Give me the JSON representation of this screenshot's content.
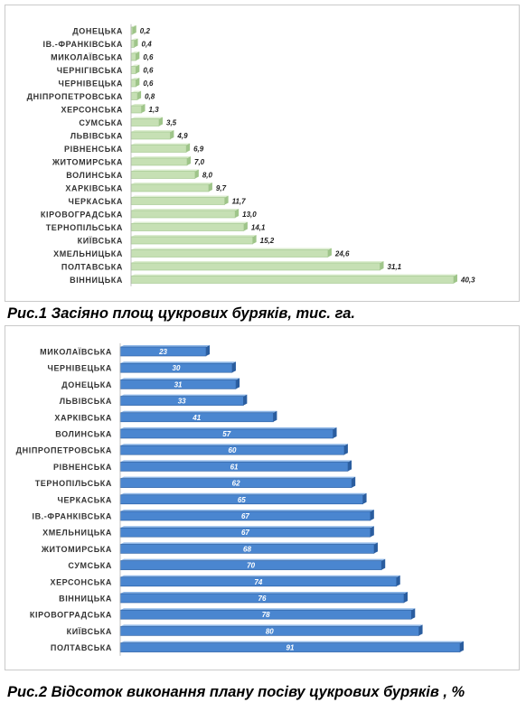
{
  "figures": [
    {
      "caption": "Рис.1  Засіяно площ цукрових буряків, тис. га.",
      "chart_data": {
        "type": "bar",
        "orientation": "horizontal",
        "categories": [
          "ДОНЕЦЬКА",
          "ІВ.-ФРАНКІВСЬКА",
          "МИКОЛАЇВСЬКА",
          "ЧЕРНІГІВСЬКА",
          "ЧЕРНІВЕЦЬКА",
          "ДНІПРОПЕТРОВСЬКА",
          "ХЕРСОНСЬКА",
          "СУМСЬКА",
          "ЛЬВІВСЬКА",
          "РІВНЕНСЬКА",
          "ЖИТОМИРСЬКА",
          "ВОЛИНСЬКА",
          "ХАРКІВСЬКА",
          "ЧЕРКАСЬКА",
          "КІРОВОГРАДСЬКА",
          "ТЕРНОПІЛЬСЬКА",
          "КИЇВСЬКА",
          "ХМЕЛЬНИЦЬКА",
          "ПОЛТАВСЬКА",
          "ВІННИЦЬКА"
        ],
        "values": [
          0.2,
          0.4,
          0.6,
          0.6,
          0.6,
          0.8,
          1.3,
          3.5,
          4.9,
          6.9,
          7.0,
          8.0,
          9.7,
          11.7,
          13.0,
          14.1,
          15.2,
          24.6,
          31.1,
          40.3
        ],
        "value_labels": [
          "0,2",
          "0,4",
          "0,6",
          "0,6",
          "0,6",
          "0,8",
          "1,3",
          "3,5",
          "4,9",
          "6,9",
          "7,0",
          "8,0",
          "9,7",
          "11,7",
          "13,0",
          "14,1",
          "15,2",
          "24,6",
          "31,1",
          "40,3"
        ],
        "xlim": [
          0,
          40.3
        ],
        "grid": false,
        "colors": {
          "bar": "#c6e0b4",
          "bar_top": "#dcedd0",
          "bar_side": "#9fc58a",
          "label": "#1f1f1f"
        }
      }
    },
    {
      "caption": "Рис.2  Відсоток виконання плану посіву цукрових  буряків , %",
      "chart_data": {
        "type": "bar",
        "orientation": "horizontal",
        "categories": [
          "МИКОЛАЇВСЬКА",
          "ЧЕРНІВЕЦЬКА",
          "ДОНЕЦЬКА",
          "ЛЬВІВСЬКА",
          "ХАРКІВСЬКА",
          "ВОЛИНСЬКА",
          "ДНІПРОПЕТРОВСЬКА",
          "РІВНЕНСЬКА",
          "ТЕРНОПІЛЬСЬКА",
          "ЧЕРКАСЬКА",
          "ІВ.-ФРАНКІВСЬКА",
          "ХМЕЛЬНИЦЬКА",
          "ЖИТОМИРСЬКА",
          "СУМСЬКА",
          "ХЕРСОНСЬКА",
          "ВІННИЦЬКА",
          "КІРОВОГРАДСЬКА",
          "КИЇВСЬКА",
          "ПОЛТАВСЬКА"
        ],
        "values": [
          23,
          30,
          31,
          33,
          41,
          57,
          60,
          61,
          62,
          65,
          67,
          67,
          68,
          70,
          74,
          76,
          78,
          80,
          91
        ],
        "value_labels": [
          "23",
          "30",
          "31",
          "33",
          "41",
          "57",
          "60",
          "61",
          "62",
          "65",
          "67",
          "67",
          "68",
          "70",
          "74",
          "76",
          "78",
          "80",
          "91"
        ],
        "xlim": [
          0,
          91
        ],
        "grid": false,
        "colors": {
          "bar": "#4a86d0",
          "bar_top": "#8fb8e8",
          "bar_side": "#2a5d9f",
          "label": "#ffffff"
        }
      }
    }
  ]
}
